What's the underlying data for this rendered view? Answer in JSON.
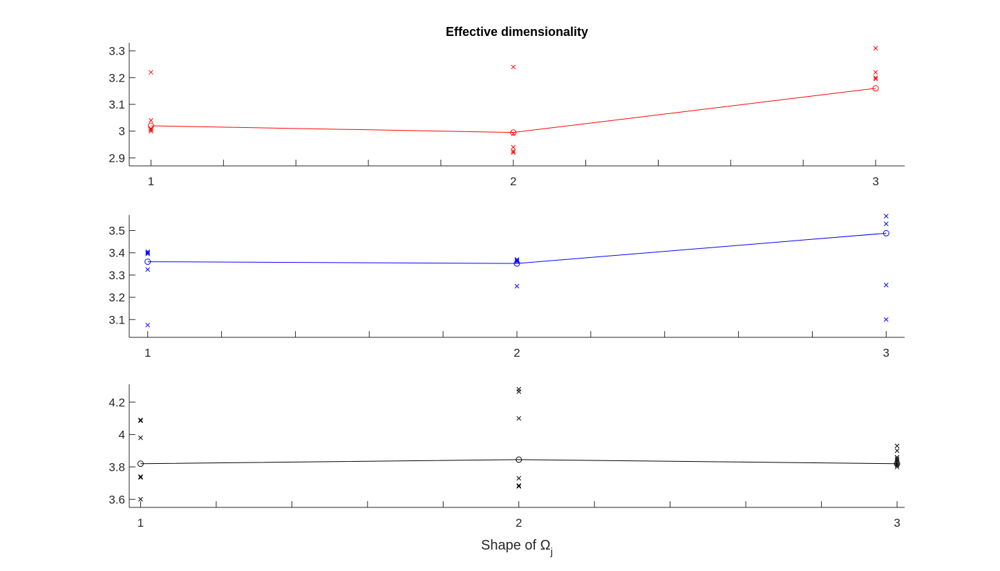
{
  "figure": {
    "title": "Effective dimensionality",
    "xlabel_prefix": "Shape of ",
    "xlabel_symbol": "Ω",
    "xlabel_subscript": "j"
  },
  "chart_data": [
    {
      "type": "scatter",
      "title": "Effective dimensionality",
      "xlabel": "",
      "ylabel": "",
      "color": "#ff0000",
      "xlim": [
        0.94,
        3.08
      ],
      "ylim": [
        2.87,
        3.33
      ],
      "xticks": [
        1,
        2,
        3
      ],
      "xtick_labels": [
        "1",
        "2",
        "3"
      ],
      "yticks": [
        2.9,
        3.0,
        3.1,
        3.2,
        3.3
      ],
      "ytick_labels": [
        "2.9",
        "3",
        "3.1",
        "3.2",
        "3.3"
      ],
      "scatter": [
        {
          "x": 1,
          "values": [
            3.22,
            3.04,
            3.01,
            3.005,
            3.0
          ]
        },
        {
          "x": 2,
          "values": [
            3.24,
            2.99,
            2.94,
            2.925,
            2.92
          ]
        },
        {
          "x": 3,
          "values": [
            3.31,
            3.22,
            3.2,
            3.195
          ]
        }
      ],
      "mean_line": {
        "x": [
          1,
          2,
          3
        ],
        "y": [
          3.02,
          2.995,
          3.16
        ]
      }
    },
    {
      "type": "scatter",
      "title": "",
      "xlabel": "",
      "ylabel": "",
      "color": "#0000ff",
      "xlim": [
        0.95,
        3.05
      ],
      "ylim": [
        3.02,
        3.57
      ],
      "xticks": [
        1,
        2,
        3
      ],
      "xtick_labels": [
        "1",
        "2",
        "3"
      ],
      "yticks": [
        3.1,
        3.2,
        3.3,
        3.4,
        3.5
      ],
      "ytick_labels": [
        "3.1",
        "3.2",
        "3.3",
        "3.4",
        "3.5"
      ],
      "scatter": [
        {
          "x": 1,
          "values": [
            3.405,
            3.4,
            3.395,
            3.325,
            3.075
          ]
        },
        {
          "x": 2,
          "values": [
            3.37,
            3.365,
            3.36,
            3.25
          ]
        },
        {
          "x": 3,
          "values": [
            3.565,
            3.53,
            3.255,
            3.1
          ]
        }
      ],
      "mean_line": {
        "x": [
          1,
          2,
          3
        ],
        "y": [
          3.36,
          3.352,
          3.488
        ]
      }
    },
    {
      "type": "scatter",
      "title": "",
      "xlabel": "Shape of Ωj",
      "ylabel": "",
      "color": "#000000",
      "xlim": [
        0.97,
        3.02
      ],
      "ylim": [
        3.55,
        4.31
      ],
      "xticks": [
        1,
        2,
        3
      ],
      "xtick_labels": [
        "1",
        "2",
        "3"
      ],
      "yticks": [
        3.6,
        3.8,
        4.0,
        4.2
      ],
      "ytick_labels": [
        "3.6",
        "3.8",
        "4",
        "4.2"
      ],
      "scatter": [
        {
          "x": 1,
          "values": [
            4.09,
            4.085,
            3.98,
            3.74,
            3.735,
            3.6
          ]
        },
        {
          "x": 2,
          "values": [
            4.28,
            4.265,
            4.1,
            3.73,
            3.685,
            3.68
          ]
        },
        {
          "x": 3,
          "values": [
            3.93,
            3.9,
            3.86,
            3.85,
            3.84,
            3.83,
            3.82,
            3.81,
            3.8
          ]
        }
      ],
      "mean_line": {
        "x": [
          1,
          2,
          3
        ],
        "y": [
          3.82,
          3.845,
          3.82
        ]
      }
    }
  ]
}
